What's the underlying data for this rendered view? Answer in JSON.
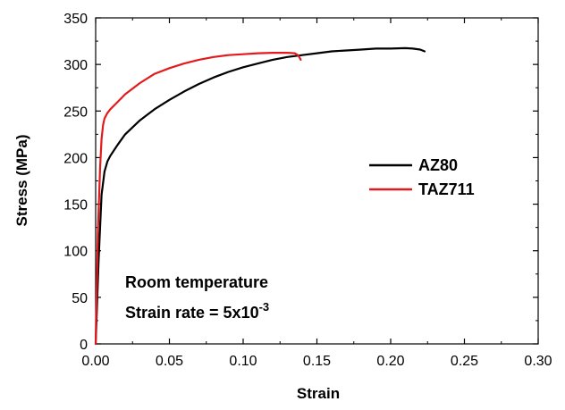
{
  "chart_data": {
    "type": "line",
    "xlabel": "Strain",
    "ylabel": "Stress (MPa)",
    "xlim": [
      0,
      0.3
    ],
    "ylim": [
      0,
      350
    ],
    "x_ticks": [
      0.0,
      0.05,
      0.1,
      0.15,
      0.2,
      0.25,
      0.3
    ],
    "x_tick_labels": [
      "0.00",
      "0.05",
      "0.10",
      "0.15",
      "0.20",
      "0.25",
      "0.30"
    ],
    "y_ticks": [
      0,
      50,
      100,
      150,
      200,
      250,
      300,
      350
    ],
    "y_tick_labels": [
      "0",
      "50",
      "100",
      "150",
      "200",
      "250",
      "300",
      "350"
    ],
    "grid": false,
    "legend_position": "right",
    "series": [
      {
        "name": "AZ80",
        "color": "#000000",
        "x": [
          0.0,
          0.002,
          0.004,
          0.006,
          0.008,
          0.01,
          0.015,
          0.02,
          0.03,
          0.04,
          0.05,
          0.06,
          0.07,
          0.08,
          0.09,
          0.1,
          0.11,
          0.12,
          0.13,
          0.14,
          0.15,
          0.16,
          0.17,
          0.18,
          0.19,
          0.2,
          0.21,
          0.215,
          0.22,
          0.223
        ],
        "y": [
          0,
          90,
          160,
          185,
          196,
          202,
          214,
          225,
          240,
          252,
          262,
          271,
          279,
          286,
          292,
          297,
          301,
          305,
          308,
          310,
          312,
          314,
          315,
          316,
          317,
          317,
          317.5,
          317,
          316,
          314
        ]
      },
      {
        "name": "TAZ711",
        "color": "#e31a1c",
        "x": [
          0.0,
          0.0015,
          0.003,
          0.004,
          0.005,
          0.006,
          0.008,
          0.01,
          0.015,
          0.02,
          0.03,
          0.04,
          0.05,
          0.06,
          0.07,
          0.08,
          0.09,
          0.1,
          0.11,
          0.12,
          0.13,
          0.135,
          0.137,
          0.138,
          0.139
        ],
        "y": [
          0,
          120,
          190,
          220,
          235,
          242,
          248,
          252,
          260,
          268,
          280,
          290,
          296,
          301,
          305,
          308,
          310,
          311,
          312,
          312.5,
          312.5,
          312,
          310,
          308,
          305
        ]
      }
    ],
    "annotations": {
      "line1": "Room temperature",
      "line2_prefix": "Strain rate = 5x10",
      "line2_superscript": "-3"
    }
  }
}
